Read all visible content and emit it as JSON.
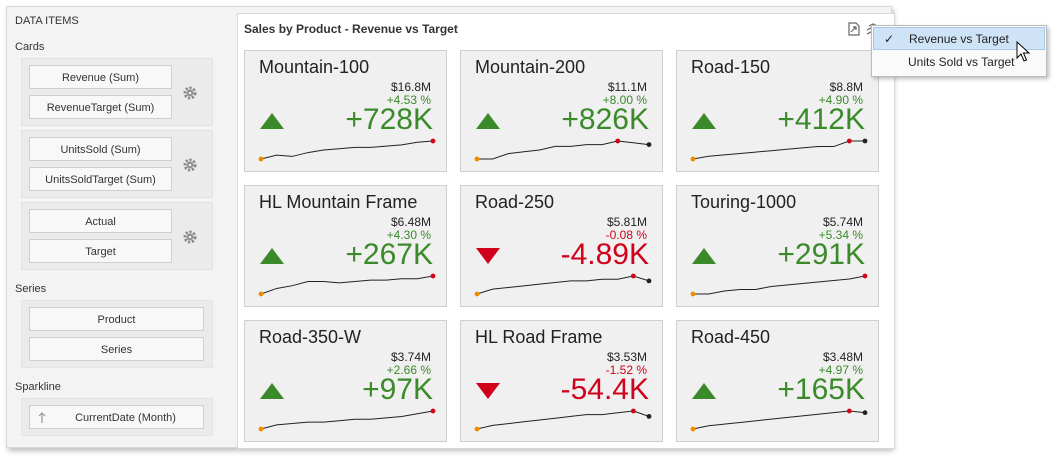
{
  "left_panel": {
    "title": "DATA ITEMS",
    "cards_label": "Cards",
    "cards_groups": [
      [
        "Revenue (Sum)",
        "RevenueTarget (Sum)"
      ],
      [
        "UnitsSold (Sum)",
        "UnitsSoldTarget (Sum)"
      ],
      [
        "Actual",
        "Target"
      ]
    ],
    "series_label": "Series",
    "series_items": [
      "Product",
      "Series"
    ],
    "sparkline_label": "Sparkline",
    "sparkline_item": "CurrentDate (Month)"
  },
  "dashboard": {
    "title": "Sales by Product - Revenue vs Target",
    "cards": [
      {
        "title": "Mountain-100",
        "abs": "$16.8M",
        "pct": "+4.53 %",
        "delta": "+728K",
        "dir": "up",
        "spark": [
          3,
          6,
          5,
          8,
          10,
          11,
          12,
          12,
          13,
          14,
          16,
          17
        ]
      },
      {
        "title": "Mountain-200",
        "abs": "$11.1M",
        "pct": "+8.00 %",
        "delta": "+826K",
        "dir": "up",
        "spark": [
          3,
          3,
          6,
          7,
          8,
          10,
          10,
          11,
          11,
          13,
          12,
          11
        ]
      },
      {
        "title": "Road-150",
        "abs": "$8.8M",
        "pct": "+4.90 %",
        "delta": "+412K",
        "dir": "up",
        "spark": [
          3,
          5,
          6,
          7,
          8,
          9,
          10,
          11,
          12,
          12,
          16,
          16
        ]
      },
      {
        "title": "HL Mountain Frame",
        "abs": "$6.48M",
        "pct": "+4.30 %",
        "delta": "+267K",
        "dir": "up",
        "spark": [
          3,
          7,
          9,
          12,
          12,
          11,
          12,
          13,
          13,
          14,
          14,
          16
        ]
      },
      {
        "title": "Road-250",
        "abs": "$5.81M",
        "pct": "-0.08 %",
        "delta": "-4.89K",
        "dir": "down",
        "spark": [
          3,
          6,
          7,
          8,
          9,
          10,
          11,
          11,
          12,
          12,
          14,
          11
        ]
      },
      {
        "title": "Touring-1000",
        "abs": "$5.74M",
        "pct": "+5.34 %",
        "delta": "+291K",
        "dir": "up",
        "spark": [
          4,
          4,
          6,
          7,
          7,
          9,
          10,
          11,
          12,
          13,
          14,
          16
        ]
      },
      {
        "title": "Road-350-W",
        "abs": "$3.74M",
        "pct": "+2.66 %",
        "delta": "+97K",
        "dir": "up",
        "spark": [
          3,
          6,
          7,
          8,
          8,
          9,
          10,
          10,
          11,
          12,
          14,
          16
        ]
      },
      {
        "title": "HL Road Frame",
        "abs": "$3.53M",
        "pct": "-1.52 %",
        "delta": "-54.4K",
        "dir": "down",
        "spark": [
          3,
          5,
          6,
          7,
          8,
          9,
          10,
          11,
          11,
          12,
          13,
          10
        ]
      },
      {
        "title": "Road-450",
        "abs": "$3.48M",
        "pct": "+4.97 %",
        "delta": "+165K",
        "dir": "up",
        "spark": [
          3,
          5,
          6,
          7,
          8,
          9,
          10,
          11,
          12,
          13,
          14,
          13
        ]
      }
    ]
  },
  "menu": {
    "items": [
      {
        "label": "Revenue vs Target",
        "selected": true,
        "check": "✓"
      },
      {
        "label": "Units Sold vs Target",
        "selected": false,
        "check": ""
      }
    ]
  },
  "colors": {
    "up": "#3a8a2a",
    "down": "#d0021b",
    "spark_line": "#222222",
    "first_point": "#f08c00",
    "max_point": "#d0021b"
  },
  "icons": [
    "gear-icon",
    "export-icon",
    "card-layout-icon",
    "checkmark-icon",
    "arrow-up-icon",
    "arrow-down-icon",
    "mouse-cursor-icon"
  ]
}
